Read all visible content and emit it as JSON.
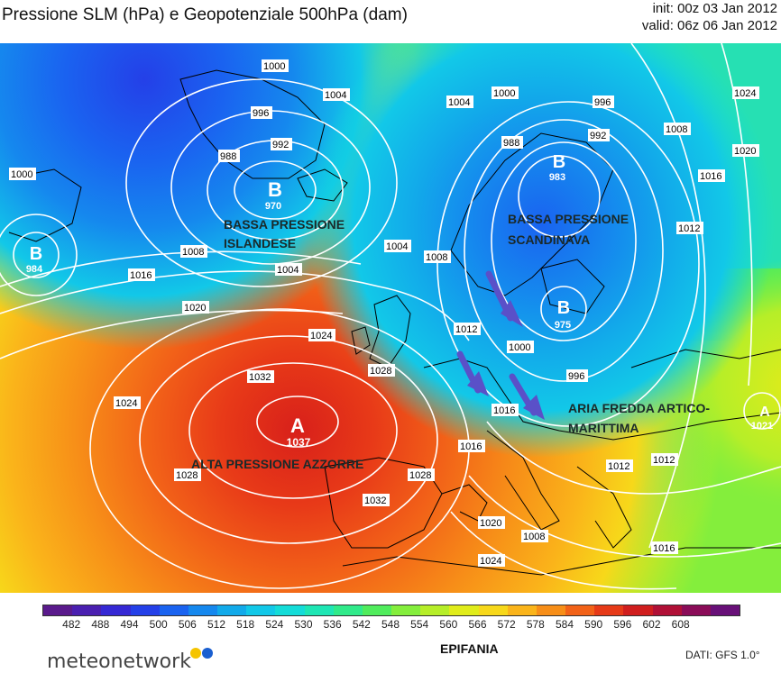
{
  "header": {
    "title": "Pressione SLM (hPa) e Geopotenziale 500hPa (dam)",
    "init": "init: 00z 03 Jan 2012",
    "valid": "valid: 06z 06 Jan 2012"
  },
  "map": {
    "centers": [
      {
        "letter": "B",
        "value": "984"
      },
      {
        "letter": "B",
        "value": "970"
      },
      {
        "letter": "B",
        "value": "983"
      },
      {
        "letter": "B",
        "value": "975"
      },
      {
        "letter": "A",
        "value": "1037"
      },
      {
        "letter": "A",
        "value": "1021"
      }
    ],
    "annotations": {
      "iceland_1": "BASSA PRESSIONE",
      "iceland_2": "ISLANDESE",
      "scand_1": "BASSA PRESSIONE",
      "scand_2": "SCANDINAVA",
      "cold_1": "ARIA FREDDA ARTICO-",
      "cold_2": "MARITTIMA",
      "azores": "ALTA PRESSIONE AZZORRE"
    },
    "isobar_labels": [
      "1000",
      "1004",
      "996",
      "992",
      "988",
      "1000",
      "1004",
      "1008",
      "1016",
      "1020",
      "1024",
      "1032",
      "1028",
      "1024",
      "1028",
      "1032",
      "1028",
      "1016",
      "1020",
      "1024",
      "1012",
      "1016",
      "1012",
      "1008",
      "996",
      "1000",
      "992",
      "988",
      "996",
      "1000",
      "1004",
      "1008",
      "1012",
      "1016",
      "1020",
      "1024",
      "1012",
      "1016",
      "1008",
      "1004"
    ],
    "arrow_color": "#5a50c8"
  },
  "colorbar": {
    "ticks": [
      "482",
      "488",
      "494",
      "500",
      "506",
      "512",
      "518",
      "524",
      "530",
      "536",
      "542",
      "548",
      "554",
      "560",
      "566",
      "572",
      "578",
      "584",
      "590",
      "596",
      "602",
      "608"
    ],
    "colors": [
      "#5a1a8c",
      "#4a1fb0",
      "#3528d4",
      "#2440e8",
      "#1a63f0",
      "#1588ee",
      "#12aaea",
      "#12c8e8",
      "#14dcd8",
      "#1ee6b4",
      "#30ea8a",
      "#50ec5c",
      "#84ee3c",
      "#b6ee28",
      "#e0ec1a",
      "#f7d81a",
      "#fab41a",
      "#f78e18",
      "#f26218",
      "#e63a18",
      "#d01e1e",
      "#b01036",
      "#8a0c58",
      "#681078"
    ]
  },
  "footer": {
    "logo": "meteonetwork",
    "event": "EPIFANIA",
    "source": "DATI: GFS 1.0°"
  }
}
